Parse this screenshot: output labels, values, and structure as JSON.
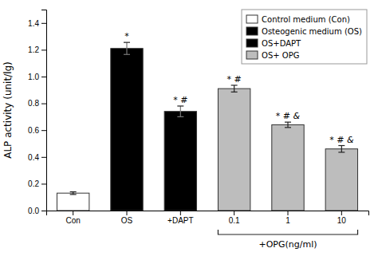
{
  "chart_data": {
    "type": "bar",
    "ylabel": "ALP activity (unit/lg)",
    "categories": [
      "Con",
      "OS",
      "+DAPT",
      "0.1",
      "1",
      "10"
    ],
    "series": [
      {
        "name": "Control medium (Con)",
        "color": "white",
        "values": [
          0.13,
          null,
          null,
          null,
          null,
          null
        ],
        "errors": [
          0.01,
          null,
          null,
          null,
          null,
          null
        ]
      },
      {
        "name": "Osteogenic medium (OS)",
        "color": "black",
        "values": [
          null,
          1.21,
          null,
          null,
          null,
          null
        ],
        "errors": [
          null,
          0.045,
          null,
          null,
          null,
          null
        ]
      },
      {
        "name": "OS+DAPT",
        "color": "black",
        "values": [
          null,
          null,
          0.74,
          null,
          null,
          null
        ],
        "errors": [
          null,
          null,
          0.04,
          null,
          null,
          null
        ]
      },
      {
        "name": "OS+ OPG",
        "color": "#bdbdbd",
        "values": [
          null,
          null,
          null,
          0.91,
          0.64,
          0.46
        ],
        "errors": [
          null,
          null,
          null,
          0.025,
          0.02,
          0.025
        ]
      }
    ],
    "annotations": [
      {
        "text": "*",
        "category": "OS"
      },
      {
        "text": "* #",
        "category": "+DAPT"
      },
      {
        "text": "* #",
        "category": "0.1"
      },
      {
        "text": "* # &",
        "category": "1"
      },
      {
        "text": "* # &",
        "category": "10"
      },
      {
        "text": "+OPG(ng/ml)",
        "from": "0.1",
        "to": "10"
      }
    ],
    "ylim": [
      0,
      1.5
    ],
    "yticks": [
      {
        "value": 0,
        "label": "0.0"
      },
      0.2,
      0.4,
      0.6,
      0.8,
      {
        "value": 1.0,
        "label": "1.0"
      },
      1.2,
      1.4
    ],
    "legend": "upper right",
    "grid": false
  }
}
